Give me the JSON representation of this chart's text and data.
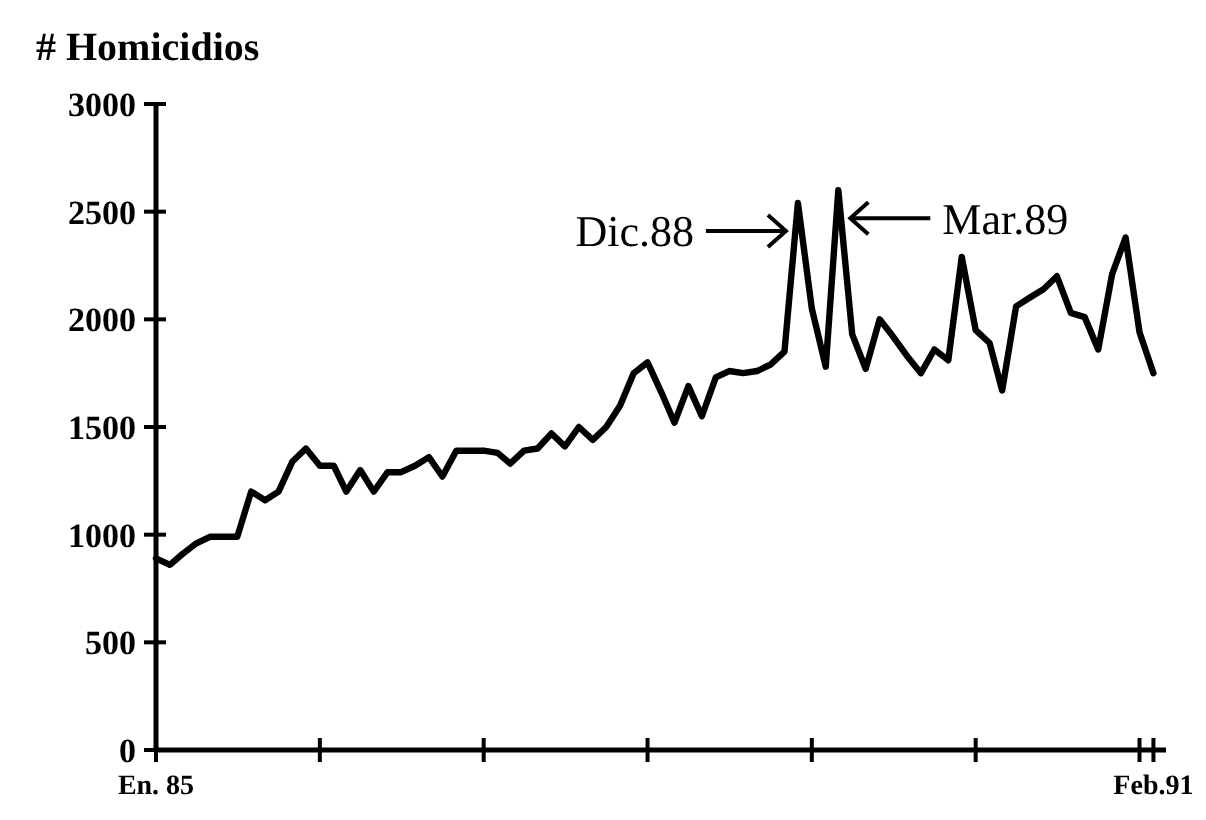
{
  "chart_data": {
    "type": "line",
    "ylabel": "# Homicidios",
    "x": [
      "1985-01",
      "1985-02",
      "1985-03",
      "1985-04",
      "1985-05",
      "1985-06",
      "1985-07",
      "1985-08",
      "1985-09",
      "1985-10",
      "1985-11",
      "1985-12",
      "1986-01",
      "1986-02",
      "1986-03",
      "1986-04",
      "1986-05",
      "1986-06",
      "1986-07",
      "1986-08",
      "1986-09",
      "1986-10",
      "1986-11",
      "1986-12",
      "1987-01",
      "1987-02",
      "1987-03",
      "1987-04",
      "1987-05",
      "1987-06",
      "1987-07",
      "1987-08",
      "1987-09",
      "1987-10",
      "1987-11",
      "1987-12",
      "1988-01",
      "1988-02",
      "1988-03",
      "1988-04",
      "1988-05",
      "1988-06",
      "1988-07",
      "1988-08",
      "1988-09",
      "1988-10",
      "1988-11",
      "1988-12",
      "1989-01",
      "1989-02",
      "1989-03",
      "1989-04",
      "1989-05",
      "1989-06",
      "1989-07",
      "1989-08",
      "1989-09",
      "1989-10",
      "1989-11",
      "1989-12",
      "1990-01",
      "1990-02",
      "1990-03",
      "1990-04",
      "1990-05",
      "1990-06",
      "1990-07",
      "1990-08",
      "1990-09",
      "1990-10",
      "1990-11",
      "1990-12",
      "1991-01",
      "1991-02"
    ],
    "series": [
      {
        "color": "#000000",
        "values": [
          890,
          860,
          910,
          960,
          990,
          990,
          990,
          1200,
          1160,
          1200,
          1340,
          1400,
          1320,
          1320,
          1200,
          1300,
          1200,
          1290,
          1290,
          1320,
          1360,
          1270,
          1390,
          1390,
          1390,
          1380,
          1330,
          1390,
          1400,
          1470,
          1410,
          1500,
          1440,
          1500,
          1600,
          1750,
          1800,
          1660,
          1520,
          1690,
          1550,
          1730,
          1760,
          1750,
          1760,
          1790,
          1850,
          2540,
          2050,
          1780,
          2600,
          1930,
          1770,
          2000,
          1920,
          1830,
          1750,
          1860,
          1810,
          2290,
          1950,
          1890,
          1670,
          2060,
          2100,
          2140,
          2200,
          2030,
          2010,
          1860,
          2210,
          2380,
          1940,
          1750
        ]
      }
    ],
    "xlim": [
      "1985-01",
      "1991-03"
    ],
    "xticks": [
      {
        "value": "1985-01",
        "label": "En. 85"
      },
      {
        "value": "1986-01",
        "label": null
      },
      {
        "value": "1987-01",
        "label": null
      },
      {
        "value": "1988-01",
        "label": null
      },
      {
        "value": "1989-01",
        "label": null
      },
      {
        "value": "1990-01",
        "label": null
      },
      {
        "value": "1991-01",
        "label": null
      },
      {
        "value": "1991-02",
        "label": "Feb.91"
      }
    ],
    "ylim": [
      0,
      3000
    ],
    "yticks": [
      0,
      500,
      1000,
      1500,
      2000,
      2500,
      3000
    ],
    "annotations": [
      {
        "text": "Dic.88",
        "x": "1988-12",
        "y": 2540
      },
      {
        "text": "Mar.89",
        "x": "1989-03",
        "y": 2600
      }
    ],
    "grid": false,
    "marker": "none",
    "line_style": "solid"
  }
}
